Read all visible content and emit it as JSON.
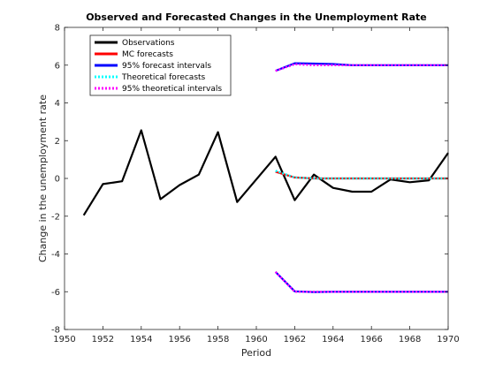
{
  "chart_data": {
    "type": "line",
    "title": "Observed and Forecasted Changes in the Unemployment Rate",
    "xlabel": "Period",
    "ylabel": "Change in the unemployment rate",
    "xlim": [
      1950,
      1970
    ],
    "ylim": [
      -8,
      8
    ],
    "xticks": [
      1950,
      1952,
      1954,
      1956,
      1958,
      1960,
      1962,
      1964,
      1966,
      1968,
      1970
    ],
    "yticks": [
      -8,
      -6,
      -4,
      -2,
      0,
      2,
      4,
      6,
      8
    ],
    "legend_position": "top-left",
    "grid": false,
    "series": [
      {
        "name": "Observations",
        "color": "#000000",
        "style": "solid",
        "x": [
          1951,
          1952,
          1953,
          1954,
          1955,
          1956,
          1957,
          1958,
          1959,
          1960,
          1961,
          1962,
          1963,
          1964,
          1965,
          1966,
          1967,
          1968,
          1969,
          1970
        ],
        "y": [
          -1.95,
          -0.3,
          -0.15,
          2.55,
          -1.1,
          -0.35,
          0.2,
          2.45,
          -1.25,
          -0.05,
          1.15,
          -1.15,
          0.2,
          -0.5,
          -0.7,
          -0.7,
          -0.05,
          -0.2,
          -0.1,
          1.35
        ]
      },
      {
        "name": "MC forecasts",
        "color": "#ff0000",
        "style": "solid",
        "x": [
          1961,
          1962,
          1963,
          1964,
          1965,
          1966,
          1967,
          1968,
          1969,
          1970
        ],
        "y": [
          0.35,
          0.05,
          0.0,
          0.0,
          0.0,
          0.0,
          0.0,
          0.0,
          0.0,
          0.0
        ]
      },
      {
        "name": "95% forecast intervals",
        "color": "#0000ff",
        "style": "solid",
        "upper": {
          "x": [
            1961,
            1962,
            1963,
            1964,
            1965,
            1966,
            1967,
            1968,
            1969,
            1970
          ],
          "y": [
            5.7,
            6.1,
            6.08,
            6.06,
            6.0,
            6.0,
            6.0,
            6.0,
            6.0,
            6.0
          ]
        },
        "lower": {
          "x": [
            1961,
            1962,
            1963,
            1964,
            1965,
            1966,
            1967,
            1968,
            1969,
            1970
          ],
          "y": [
            -4.95,
            -5.98,
            -6.02,
            -6.0,
            -6.0,
            -6.0,
            -6.0,
            -6.0,
            -6.0,
            -6.0
          ]
        }
      },
      {
        "name": "Theoretical forecasts",
        "color": "#00ffff",
        "style": "dotted",
        "x": [
          1961,
          1962,
          1963,
          1964,
          1965,
          1966,
          1967,
          1968,
          1969,
          1970
        ],
        "y": [
          0.4,
          0.05,
          0.0,
          0.0,
          0.0,
          0.0,
          0.0,
          0.0,
          0.0,
          0.0
        ]
      },
      {
        "name": "95% theoretical intervals",
        "color": "#ff00ff",
        "style": "dotted",
        "upper": {
          "x": [
            1961,
            1962,
            1963,
            1964,
            1965,
            1966,
            1967,
            1968,
            1969,
            1970
          ],
          "y": [
            5.7,
            6.05,
            6.0,
            6.0,
            6.0,
            6.0,
            6.0,
            6.0,
            6.0,
            6.0
          ]
        },
        "lower": {
          "x": [
            1961,
            1962,
            1963,
            1964,
            1965,
            1966,
            1967,
            1968,
            1969,
            1970
          ],
          "y": [
            -4.95,
            -6.0,
            -6.0,
            -6.0,
            -6.0,
            -6.0,
            -6.0,
            -6.0,
            -6.0,
            -6.0
          ]
        }
      }
    ]
  }
}
